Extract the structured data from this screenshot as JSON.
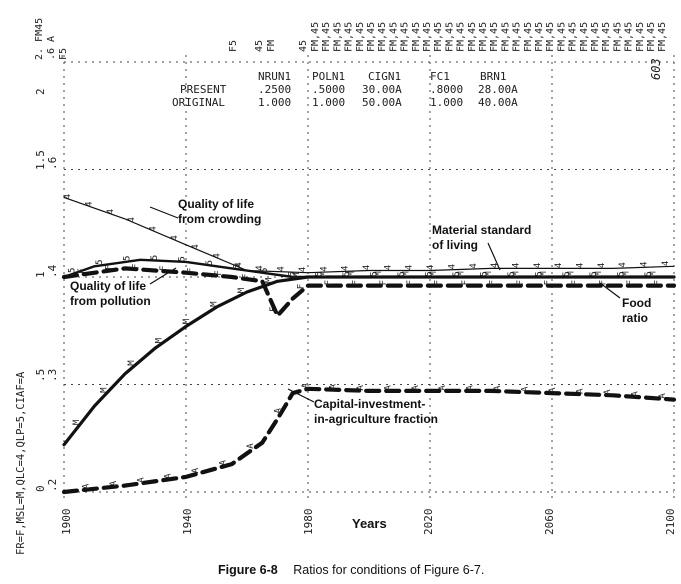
{
  "header": {
    "columns": [
      "NRUN1",
      "POLN1",
      "CIGN1",
      "FC1",
      "BRN1"
    ],
    "rows": [
      {
        "label": "PRESENT",
        "values": [
          ".2500",
          ".5000",
          "30.00A",
          ".8000",
          "28.00A"
        ]
      },
      {
        "label": "ORIGINAL",
        "values": [
          "1.000",
          "1.000",
          "50.00A",
          "1.000",
          "40.00A"
        ]
      }
    ],
    "run_number": "603"
  },
  "chart_data": {
    "type": "line",
    "xlabel": "Years",
    "xlim": [
      1900,
      2100
    ],
    "x_ticks": [
      "1900",
      "1940",
      "1980",
      "2020",
      "2060",
      "2100"
    ],
    "scale_labels": {
      "scale_a": [
        "2",
        "1.5",
        "1",
        ".5",
        "0"
      ],
      "scale_b": [
        ".6",
        ".4",
        ".3",
        ".2"
      ]
    },
    "scale_legend": "FR=F,MSL=M,QLC=4,QLP=5,CIAF=A",
    "top_column_label": "FM,45",
    "top_left_labels": [
      "2. FM45",
      ".6 A",
      "F5"
    ],
    "top_mid_labels": [
      "F5",
      "45",
      "FM",
      "45"
    ],
    "series": [
      {
        "name": "Quality of life from crowding",
        "symbol": "4",
        "style": "thin",
        "x": [
          1900,
          1920,
          1940,
          1960,
          1980,
          2000,
          2020,
          2040,
          2060,
          2080,
          2100
        ],
        "y": [
          1.37,
          1.27,
          1.15,
          1.03,
          1.02,
          1.03,
          1.03,
          1.04,
          1.04,
          1.04,
          1.05
        ]
      },
      {
        "name": "Quality of life from pollution",
        "symbol": "5",
        "style": "medium",
        "x": [
          1900,
          1910,
          1925,
          1940,
          1955,
          1965,
          1975,
          1980,
          2000,
          2040,
          2100
        ],
        "y": [
          1.0,
          1.05,
          1.08,
          1.07,
          1.04,
          1.02,
          1.0,
          1.0,
          1.0,
          1.0,
          1.0
        ]
      },
      {
        "name": "Material standard of living",
        "symbol": "M",
        "style": "thick",
        "x": [
          1900,
          1910,
          1920,
          1930,
          1940,
          1950,
          1960,
          1970,
          1980,
          2000,
          2040,
          2100
        ],
        "y": [
          0.22,
          0.4,
          0.55,
          0.67,
          0.77,
          0.86,
          0.93,
          0.98,
          1.0,
          1.0,
          1.0,
          1.0
        ]
      },
      {
        "name": "Food ratio",
        "symbol": "F",
        "style": "dashed",
        "x": [
          1900,
          1920,
          1940,
          1955,
          1965,
          1970,
          1975,
          1980,
          2000,
          2040,
          2100
        ],
        "y": [
          1.0,
          1.04,
          1.02,
          1.0,
          0.98,
          0.82,
          0.9,
          0.96,
          0.96,
          0.96,
          0.96
        ]
      },
      {
        "name": "Capital-investment-in-agriculture fraction",
        "symbol": "A",
        "style": "dashed",
        "x": [
          1900,
          1920,
          1940,
          1955,
          1965,
          1970,
          1975,
          1980,
          2000,
          2040,
          2060,
          2080,
          2100
        ],
        "y": [
          0.0,
          0.03,
          0.07,
          0.13,
          0.23,
          0.34,
          0.46,
          0.48,
          0.47,
          0.47,
          0.46,
          0.45,
          0.43
        ]
      }
    ],
    "annotations": [
      "Quality of life from crowding",
      "Quality of life from pollution",
      "Material standard of living",
      "Food ratio",
      "Capital-investment-in-agriculture fraction"
    ]
  },
  "caption": {
    "label": "Figure 6-8",
    "text": "Ratios for conditions of Figure 6-7."
  }
}
